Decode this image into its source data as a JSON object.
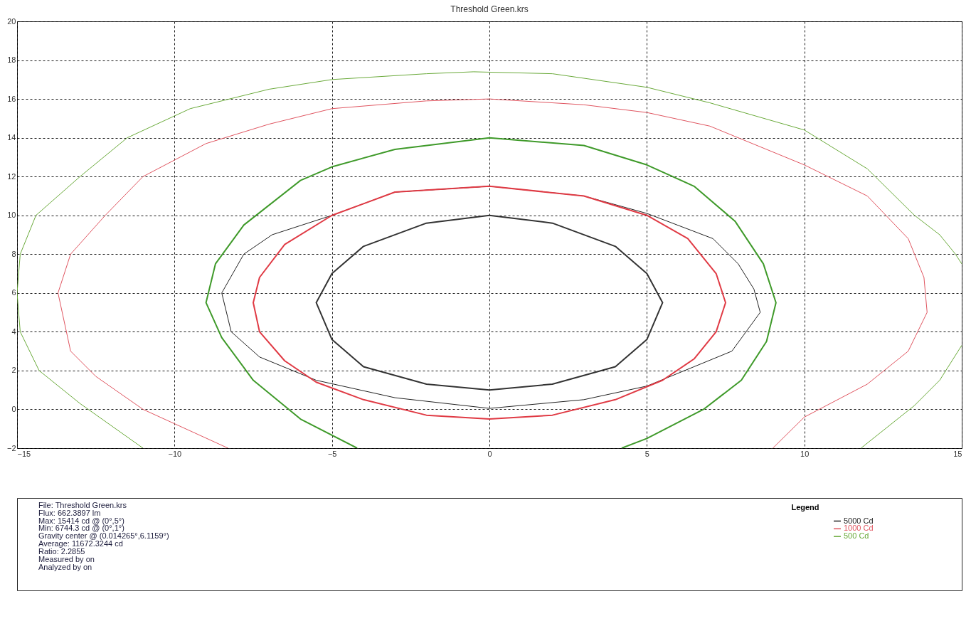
{
  "chart_data": {
    "type": "line",
    "title": "Threshold Green.krs",
    "xlim": [
      -15,
      15
    ],
    "xticks": [
      -15,
      -10,
      -5,
      0,
      5,
      10,
      15
    ],
    "ylim": [
      -2,
      20
    ],
    "yticks": [
      -2,
      0,
      2,
      4,
      6,
      8,
      10,
      12,
      14,
      16,
      18,
      20
    ],
    "grid": true,
    "legend": "bottom right",
    "legend_title": "Legend",
    "line_style": "solid",
    "marker": "none",
    "series": [
      {
        "color": "#333333",
        "x": [
          0,
          -2,
          -4,
          -5,
          -5.5,
          -5,
          -4,
          -2,
          0,
          2,
          4,
          5,
          5.5,
          5,
          4,
          2,
          0,
          -2
        ],
        "values": [
          10,
          9.6,
          8.4,
          7,
          5.5,
          3.6,
          2.2,
          1.3,
          1,
          1.3,
          2.2,
          3.6,
          5.5,
          7,
          8.4,
          9.6,
          10,
          9.6
        ]
      },
      {
        "name": "5000 Cd",
        "color": "#222222",
        "x": [
          0,
          -3,
          -5,
          -6.9,
          -7.8,
          -8.5,
          -8.2,
          -7.3,
          -5.5,
          -3,
          0,
          3,
          5,
          6.5,
          7.7,
          8.6,
          8.4,
          7.9,
          7.1,
          5,
          3,
          0,
          -3
        ],
        "values": [
          11.5,
          11.2,
          10,
          9,
          8,
          6,
          4,
          2.7,
          1.5,
          0.6,
          0.05,
          0.5,
          1.2,
          2.2,
          3,
          5,
          6.2,
          7.5,
          8.8,
          10.1,
          11,
          11.5,
          11.2
        ]
      },
      {
        "color": "#e03a44",
        "x": [
          0,
          -3,
          -5,
          -6.5,
          -7.3,
          -7.5,
          -7.3,
          -6.5,
          -5.5,
          -4,
          -2,
          0,
          2,
          4,
          5.5,
          6.5,
          7.2,
          7.5,
          7.2,
          6.3,
          5,
          3,
          0,
          -3
        ],
        "values": [
          11.5,
          11.2,
          10,
          8.5,
          6.8,
          5.5,
          4,
          2.5,
          1.4,
          0.5,
          -0.3,
          -0.5,
          -0.3,
          0.5,
          1.5,
          2.6,
          4,
          5.5,
          7,
          8.8,
          10,
          11,
          11.5,
          11.2
        ]
      },
      {
        "name": "1000 Cd",
        "color": "#e05560",
        "x": [
          -8.3,
          -11,
          -12.5,
          -13.3,
          -13.7,
          -13.3,
          -12.2,
          -11,
          -9,
          -7,
          -5,
          -2,
          0,
          3,
          5,
          7,
          10,
          12,
          13.3,
          13.8,
          13.9,
          13.3,
          12,
          10,
          9
        ],
        "values": [
          -2,
          0,
          1.7,
          3,
          6,
          8,
          10,
          12,
          13.7,
          14.7,
          15.5,
          15.9,
          16,
          15.7,
          15.3,
          14.6,
          12.6,
          11,
          8.8,
          6.8,
          5,
          3,
          1.3,
          -0.4,
          -2
        ]
      },
      {
        "color": "#3f9a2a",
        "x": [
          -4.2,
          -6,
          -7.5,
          -8.5,
          -9,
          -8.7,
          -7.8,
          -6,
          -5,
          -3,
          0,
          3,
          5,
          6.5,
          7.8,
          8.7,
          9.1,
          8.8,
          8,
          6.8,
          5,
          4.2
        ],
        "values": [
          -2,
          -0.5,
          1.5,
          3.7,
          5.5,
          7.5,
          9.5,
          11.8,
          12.5,
          13.4,
          14,
          13.6,
          12.6,
          11.5,
          9.7,
          7.5,
          5.5,
          3.5,
          1.5,
          0,
          -1.5,
          -2
        ]
      },
      {
        "name": "500 Cd",
        "color": "#6aaa3a",
        "x": [
          -11,
          -13,
          -14.3,
          -14.9,
          -15,
          -14.9,
          -14.4,
          -13,
          -11.5,
          -9.5,
          -7,
          -5,
          -2,
          -0.5,
          2,
          5,
          7,
          10,
          12,
          13.5,
          14.3,
          14.8,
          15,
          null,
          15,
          14.3,
          13.5,
          11.8
        ],
        "values": [
          -2,
          0.3,
          2,
          4,
          6,
          8,
          10,
          12,
          14,
          15.5,
          16.5,
          17,
          17.3,
          17.4,
          17.3,
          16.6,
          15.8,
          14.4,
          12.4,
          10,
          9,
          8,
          7.5,
          null,
          3.3,
          1.5,
          0.2,
          -2
        ]
      }
    ],
    "annotations": [
      "File: Threshold Green.krs",
      "Flux: 662.3897 lm",
      "Max: 15414 cd @ (0°,5°)",
      "Min: 6744.3 cd @ (0°,1°)",
      "Gravity center @ (0.014265°,6.1159°)",
      "Average: 11672.3244 cd",
      "Ratio: 2.2855",
      "Measured by   on",
      "Analyzed by   on"
    ]
  }
}
